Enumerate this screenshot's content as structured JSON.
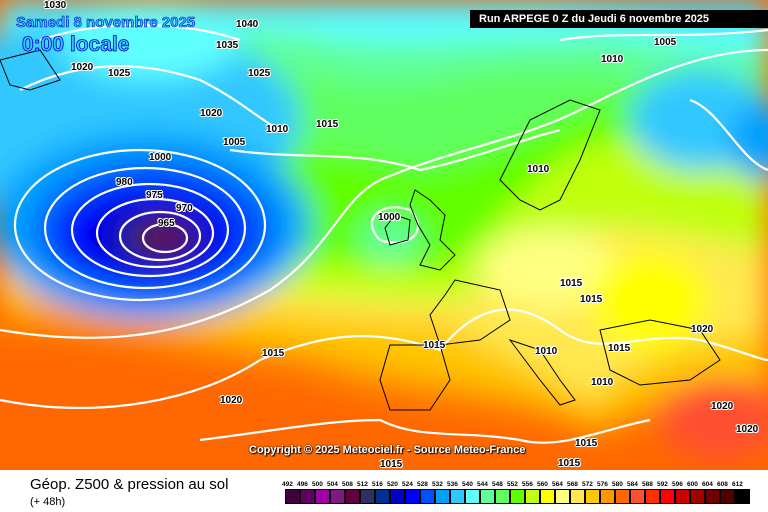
{
  "header": {
    "date": "Samedi 8 novembre 2025",
    "time": "0:00 locale",
    "run": "Run ARPEGE 0 Z du Jeudi 6 novembre 2025"
  },
  "copyright": "Copyright © 2025 Meteociel.fr - Source Meteo-France",
  "footer": {
    "title": "Géop. Z500 & pression au sol",
    "subtitle": "(+ 48h)"
  },
  "isobar_labels": [
    "1005",
    "1010",
    "1010",
    "1015",
    "1005",
    "1000",
    "965",
    "1000",
    "1010",
    "1015",
    "1020",
    "1015",
    "1010",
    "1015",
    "1010",
    "1015",
    "1020",
    "1020",
    "1015",
    "1015",
    "1015",
    "1020",
    "1035",
    "1020",
    "1025",
    "970",
    "975",
    "980",
    "1030",
    "1040",
    "1025",
    "1015",
    "1020"
  ],
  "legend": [
    {
      "value": "492",
      "color": "#400040"
    },
    {
      "value": "496",
      "color": "#600060"
    },
    {
      "value": "500",
      "color": "#a000a8"
    },
    {
      "value": "504",
      "color": "#801880"
    },
    {
      "value": "508",
      "color": "#600040"
    },
    {
      "value": "512",
      "color": "#303060"
    },
    {
      "value": "516",
      "color": "#003090"
    },
    {
      "value": "520",
      "color": "#0000c8"
    },
    {
      "value": "524",
      "color": "#0000ff"
    },
    {
      "value": "528",
      "color": "#0050ff"
    },
    {
      "value": "532",
      "color": "#00a0ff"
    },
    {
      "value": "536",
      "color": "#30c8ff"
    },
    {
      "value": "540",
      "color": "#60ffff"
    },
    {
      "value": "544",
      "color": "#60ff98"
    },
    {
      "value": "548",
      "color": "#60ff60"
    },
    {
      "value": "552",
      "color": "#60ff00"
    },
    {
      "value": "556",
      "color": "#c0ff10"
    },
    {
      "value": "560",
      "color": "#ffff00"
    },
    {
      "value": "564",
      "color": "#ffff80"
    },
    {
      "value": "568",
      "color": "#ffe850"
    },
    {
      "value": "572",
      "color": "#ffc800"
    },
    {
      "value": "576",
      "color": "#ff9800"
    },
    {
      "value": "580",
      "color": "#ff6800"
    },
    {
      "value": "584",
      "color": "#ff5030"
    },
    {
      "value": "588",
      "color": "#ff3000"
    },
    {
      "value": "592",
      "color": "#ff0000"
    },
    {
      "value": "596",
      "color": "#c80000"
    },
    {
      "value": "600",
      "color": "#a00000"
    },
    {
      "value": "604",
      "color": "#700000"
    },
    {
      "value": "608",
      "color": "#500000"
    },
    {
      "value": "612",
      "color": "#000000"
    }
  ]
}
